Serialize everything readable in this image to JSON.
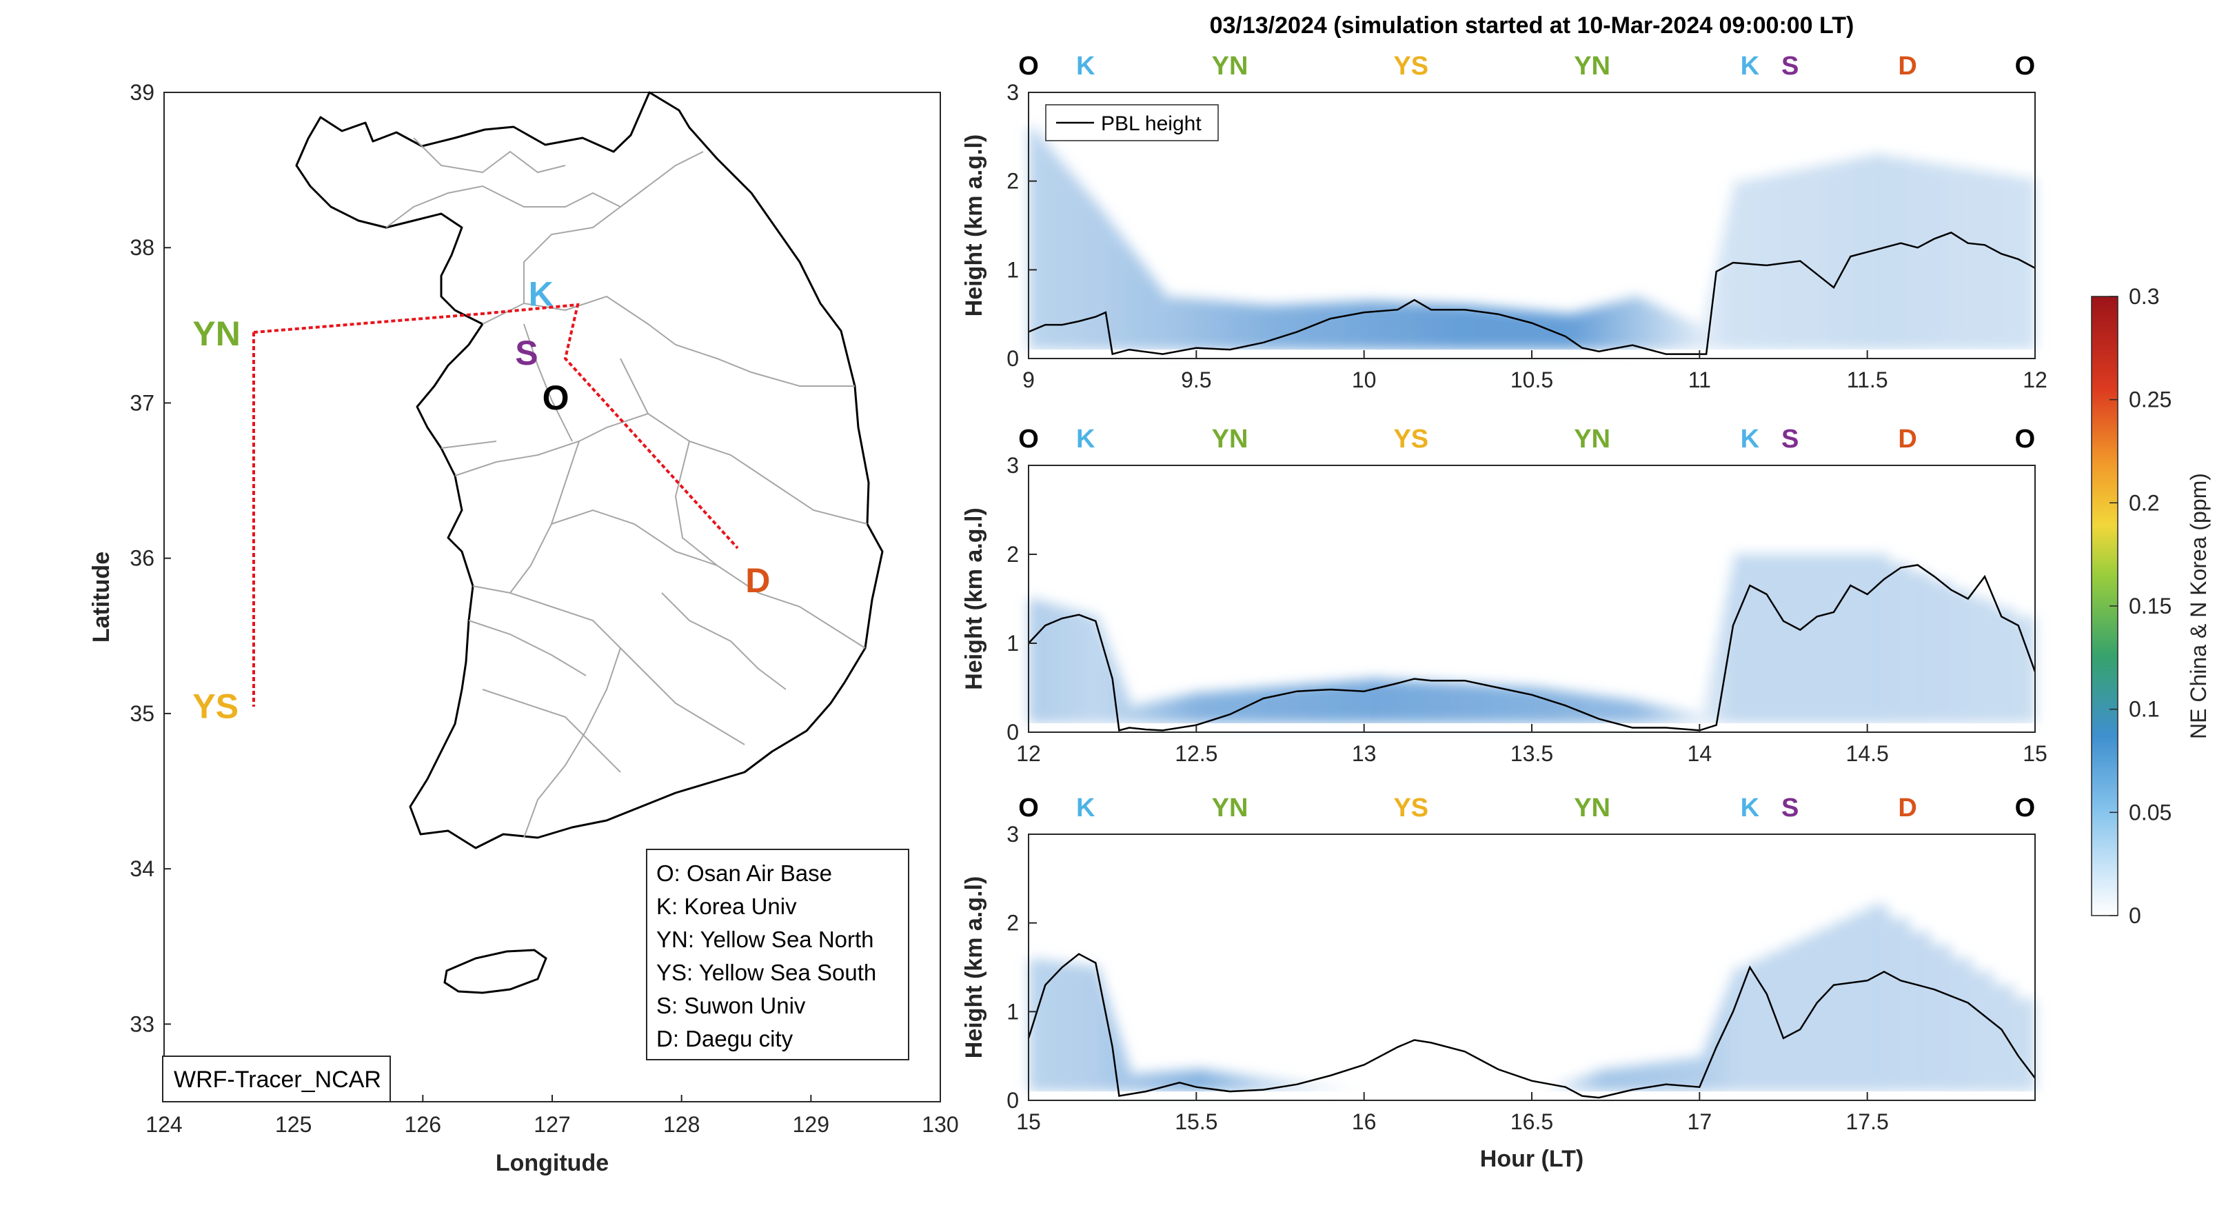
{
  "figure": {
    "title": "03/13/2024 (simulation started at 10-Mar-2024 09:00:00 LT)",
    "colors": {
      "O": "#000000",
      "K": "#4db3e6",
      "YN": "#77ac30",
      "YS": "#edb120",
      "S": "#7e2f8e",
      "D": "#d95319",
      "route": "#e8141b",
      "pbl": "#000000",
      "coast": "#000000",
      "boundary": "#a6a6a6"
    }
  },
  "map": {
    "xlabel": "Longitude",
    "ylabel": "Latitude",
    "xticks": [
      "124",
      "125",
      "126",
      "127",
      "128",
      "129",
      "130"
    ],
    "yticks": [
      "33",
      "34",
      "35",
      "36",
      "37",
      "38",
      "39"
    ],
    "xlim": [
      124,
      130
    ],
    "ylim": [
      32.5,
      39
    ],
    "model_label": "WRF-Tracer_NCAR",
    "sites": [
      {
        "code": "O",
        "lon": 127.03,
        "lat": 37.09
      },
      {
        "code": "K",
        "lon": 127.03,
        "lat": 37.59
      },
      {
        "code": "YN",
        "lon": 124.7,
        "lat": 37.45
      },
      {
        "code": "YS",
        "lon": 124.7,
        "lat": 35.05
      },
      {
        "code": "S",
        "lon": 126.98,
        "lat": 37.3
      },
      {
        "code": "D",
        "lon": 128.6,
        "lat": 35.87
      }
    ],
    "legend": [
      "O: Osan Air Base",
      "K: Korea Univ",
      "YN: Yellow Sea North",
      "YS: Yellow Sea South",
      "S: Suwon Univ",
      "D: Daegu city"
    ]
  },
  "chart_data": {
    "type": "area",
    "title": "03/13/2024 (simulation started at 10-Mar-2024 09:00:00 LT)",
    "xlabel": "Hour (LT)",
    "ylabel": "Height (km a.g.l)",
    "colorbar": {
      "label": "NE China & N Korea (ppm)",
      "ticks": [
        "0",
        "0.05",
        "0.1",
        "0.15",
        "0.2",
        "0.25",
        "0.3"
      ],
      "range": [
        0,
        0.3
      ]
    },
    "series_name": "PBL height",
    "route_markers": [
      [
        "O",
        9.0
      ],
      [
        "K",
        9.17
      ],
      [
        "YN",
        9.6
      ],
      [
        "YS",
        10.14
      ],
      [
        "YN",
        10.68
      ],
      [
        "K",
        11.15
      ],
      [
        "S",
        11.27
      ],
      [
        "D",
        11.62
      ],
      [
        "O",
        11.97
      ]
    ],
    "panels": [
      {
        "xlim": [
          9,
          12
        ],
        "ylim": [
          0,
          3
        ],
        "xticks": [
          "9",
          "9.5",
          "10",
          "10.5",
          "11",
          "11.5",
          "12"
        ],
        "yticks": [
          "0",
          "1",
          "2",
          "3"
        ],
        "legend": "PBL height",
        "pbl": [
          [
            9.0,
            0.3
          ],
          [
            9.05,
            0.38
          ],
          [
            9.1,
            0.38
          ],
          [
            9.15,
            0.42
          ],
          [
            9.2,
            0.47
          ],
          [
            9.23,
            0.52
          ],
          [
            9.25,
            0.05
          ],
          [
            9.3,
            0.1
          ],
          [
            9.4,
            0.05
          ],
          [
            9.5,
            0.12
          ],
          [
            9.6,
            0.1
          ],
          [
            9.7,
            0.18
          ],
          [
            9.8,
            0.3
          ],
          [
            9.9,
            0.45
          ],
          [
            10.0,
            0.52
          ],
          [
            10.1,
            0.55
          ],
          [
            10.15,
            0.66
          ],
          [
            10.2,
            0.55
          ],
          [
            10.3,
            0.55
          ],
          [
            10.4,
            0.5
          ],
          [
            10.5,
            0.4
          ],
          [
            10.6,
            0.25
          ],
          [
            10.65,
            0.12
          ],
          [
            10.7,
            0.08
          ],
          [
            10.8,
            0.15
          ],
          [
            10.9,
            0.05
          ],
          [
            11.0,
            0.05
          ],
          [
            11.02,
            0.05
          ],
          [
            11.05,
            0.98
          ],
          [
            11.1,
            1.08
          ],
          [
            11.2,
            1.05
          ],
          [
            11.3,
            1.1
          ],
          [
            11.35,
            0.95
          ],
          [
            11.4,
            0.8
          ],
          [
            11.45,
            1.15
          ],
          [
            11.5,
            1.2
          ],
          [
            11.6,
            1.3
          ],
          [
            11.65,
            1.25
          ],
          [
            11.7,
            1.35
          ],
          [
            11.75,
            1.42
          ],
          [
            11.8,
            1.3
          ],
          [
            11.85,
            1.28
          ],
          [
            11.9,
            1.18
          ],
          [
            11.95,
            1.12
          ],
          [
            12.0,
            1.02
          ]
        ],
        "tracer": [
          [
            9.0,
            0.045,
            2.6
          ],
          [
            9.2,
            0.05,
            1.7
          ],
          [
            9.4,
            0.06,
            0.7
          ],
          [
            9.7,
            0.08,
            0.6
          ],
          [
            10.0,
            0.09,
            0.65
          ],
          [
            10.3,
            0.1,
            0.6
          ],
          [
            10.6,
            0.1,
            0.5
          ],
          [
            10.8,
            0.06,
            0.7
          ],
          [
            11.0,
            0.02,
            0.35
          ],
          [
            11.1,
            0.03,
            2.0
          ],
          [
            11.5,
            0.035,
            2.3
          ],
          [
            12.0,
            0.03,
            2.0
          ]
        ]
      },
      {
        "xlim": [
          12,
          15
        ],
        "ylim": [
          0,
          3
        ],
        "xticks": [
          "12",
          "12.5",
          "13",
          "13.5",
          "14",
          "14.5",
          "15"
        ],
        "yticks": [
          "0",
          "1",
          "2",
          "3"
        ],
        "pbl": [
          [
            12.0,
            1.0
          ],
          [
            12.05,
            1.2
          ],
          [
            12.1,
            1.28
          ],
          [
            12.15,
            1.32
          ],
          [
            12.2,
            1.25
          ],
          [
            12.25,
            0.6
          ],
          [
            12.27,
            0.02
          ],
          [
            12.3,
            0.05
          ],
          [
            12.35,
            0.03
          ],
          [
            12.4,
            0.02
          ],
          [
            12.5,
            0.08
          ],
          [
            12.6,
            0.2
          ],
          [
            12.7,
            0.38
          ],
          [
            12.8,
            0.46
          ],
          [
            12.9,
            0.48
          ],
          [
            13.0,
            0.46
          ],
          [
            13.1,
            0.55
          ],
          [
            13.15,
            0.6
          ],
          [
            13.2,
            0.58
          ],
          [
            13.3,
            0.58
          ],
          [
            13.4,
            0.5
          ],
          [
            13.5,
            0.42
          ],
          [
            13.6,
            0.3
          ],
          [
            13.7,
            0.15
          ],
          [
            13.8,
            0.05
          ],
          [
            13.9,
            0.05
          ],
          [
            14.0,
            0.02
          ],
          [
            14.05,
            0.08
          ],
          [
            14.1,
            1.2
          ],
          [
            14.15,
            1.65
          ],
          [
            14.2,
            1.55
          ],
          [
            14.25,
            1.25
          ],
          [
            14.3,
            1.15
          ],
          [
            14.35,
            1.3
          ],
          [
            14.4,
            1.35
          ],
          [
            14.45,
            1.65
          ],
          [
            14.5,
            1.55
          ],
          [
            14.55,
            1.72
          ],
          [
            14.6,
            1.85
          ],
          [
            14.65,
            1.88
          ],
          [
            14.7,
            1.75
          ],
          [
            14.75,
            1.6
          ],
          [
            14.8,
            1.5
          ],
          [
            14.85,
            1.75
          ],
          [
            14.9,
            1.3
          ],
          [
            14.95,
            1.2
          ],
          [
            15.0,
            0.68
          ]
        ],
        "tracer": [
          [
            12.0,
            0.05,
            1.5
          ],
          [
            12.2,
            0.04,
            1.3
          ],
          [
            12.3,
            0.05,
            0.3
          ],
          [
            12.5,
            0.08,
            0.45
          ],
          [
            13.0,
            0.09,
            0.6
          ],
          [
            13.5,
            0.08,
            0.5
          ],
          [
            13.8,
            0.07,
            0.35
          ],
          [
            14.0,
            0.02,
            0.2
          ],
          [
            14.1,
            0.04,
            2.0
          ],
          [
            14.5,
            0.04,
            2.0
          ],
          [
            15.0,
            0.035,
            1.2
          ]
        ]
      },
      {
        "xlim": [
          15,
          18
        ],
        "ylim": [
          0,
          3
        ],
        "xticks": [
          "15",
          "15.5",
          "16",
          "16.5",
          "17",
          "17.5"
        ],
        "yticks": [
          "0",
          "1",
          "2",
          "3"
        ],
        "pbl": [
          [
            15.0,
            0.7
          ],
          [
            15.05,
            1.3
          ],
          [
            15.1,
            1.5
          ],
          [
            15.15,
            1.65
          ],
          [
            15.2,
            1.55
          ],
          [
            15.25,
            0.6
          ],
          [
            15.27,
            0.05
          ],
          [
            15.35,
            0.1
          ],
          [
            15.45,
            0.2
          ],
          [
            15.5,
            0.15
          ],
          [
            15.6,
            0.1
          ],
          [
            15.7,
            0.12
          ],
          [
            15.8,
            0.18
          ],
          [
            15.9,
            0.28
          ],
          [
            16.0,
            0.4
          ],
          [
            16.1,
            0.6
          ],
          [
            16.15,
            0.68
          ],
          [
            16.2,
            0.65
          ],
          [
            16.3,
            0.55
          ],
          [
            16.4,
            0.35
          ],
          [
            16.5,
            0.22
          ],
          [
            16.6,
            0.15
          ],
          [
            16.65,
            0.05
          ],
          [
            16.7,
            0.03
          ],
          [
            16.8,
            0.12
          ],
          [
            16.9,
            0.18
          ],
          [
            17.0,
            0.15
          ],
          [
            17.05,
            0.6
          ],
          [
            17.1,
            1.0
          ],
          [
            17.15,
            1.5
          ],
          [
            17.2,
            1.2
          ],
          [
            17.25,
            0.7
          ],
          [
            17.3,
            0.8
          ],
          [
            17.35,
            1.1
          ],
          [
            17.4,
            1.3
          ],
          [
            17.5,
            1.35
          ],
          [
            17.55,
            1.45
          ],
          [
            17.6,
            1.35
          ],
          [
            17.65,
            1.3
          ],
          [
            17.7,
            1.25
          ],
          [
            17.8,
            1.1
          ],
          [
            17.9,
            0.8
          ],
          [
            17.95,
            0.5
          ],
          [
            18.0,
            0.25
          ]
        ],
        "tracer": [
          [
            15.0,
            0.045,
            1.6
          ],
          [
            15.2,
            0.05,
            1.5
          ],
          [
            15.3,
            0.06,
            0.3
          ],
          [
            15.5,
            0.08,
            0.35
          ],
          [
            15.7,
            0.04,
            0.25
          ],
          [
            16.0,
            0.0,
            0.1
          ],
          [
            16.5,
            0.0,
            0.1
          ],
          [
            16.7,
            0.06,
            0.35
          ],
          [
            17.0,
            0.05,
            0.5
          ],
          [
            17.1,
            0.04,
            1.5
          ],
          [
            17.5,
            0.04,
            2.2
          ],
          [
            18.0,
            0.035,
            1.0
          ]
        ]
      }
    ]
  }
}
